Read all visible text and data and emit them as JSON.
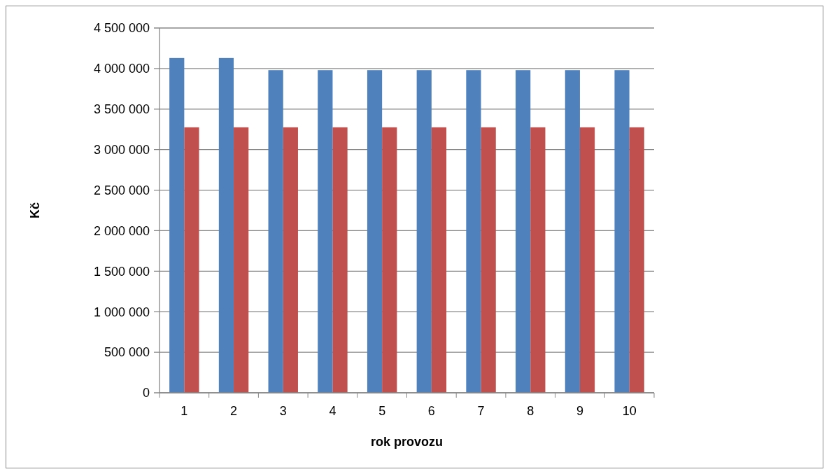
{
  "chart_data": {
    "type": "bar",
    "xlabel": "rok provozu",
    "ylabel": "Kč",
    "categories": [
      "1",
      "2",
      "3",
      "4",
      "5",
      "6",
      "7",
      "8",
      "9",
      "10"
    ],
    "series": [
      {
        "color": "#4f81bd",
        "values": [
          4130000,
          4130000,
          3980000,
          3980000,
          3980000,
          3980000,
          3980000,
          3980000,
          3980000,
          3980000
        ]
      },
      {
        "color": "#c0504d",
        "values": [
          3275000,
          3275000,
          3275000,
          3275000,
          3275000,
          3275000,
          3275000,
          3275000,
          3275000,
          3275000
        ]
      }
    ],
    "ylim": [
      0,
      4500000
    ],
    "yticks": [
      {
        "value": 0,
        "label": "0"
      },
      {
        "value": 500000,
        "label": "500 000"
      },
      {
        "value": 1000000,
        "label": "1 000 000"
      },
      {
        "value": 1500000,
        "label": "1 500 000"
      },
      {
        "value": 2000000,
        "label": "2 000 000"
      },
      {
        "value": 2500000,
        "label": "2 500 000"
      },
      {
        "value": 3000000,
        "label": "3 000 000"
      },
      {
        "value": 3500000,
        "label": "3 500 000"
      },
      {
        "value": 4000000,
        "label": "4 000 000"
      },
      {
        "value": 4500000,
        "label": "4 500 000"
      }
    ],
    "grid": "y"
  }
}
